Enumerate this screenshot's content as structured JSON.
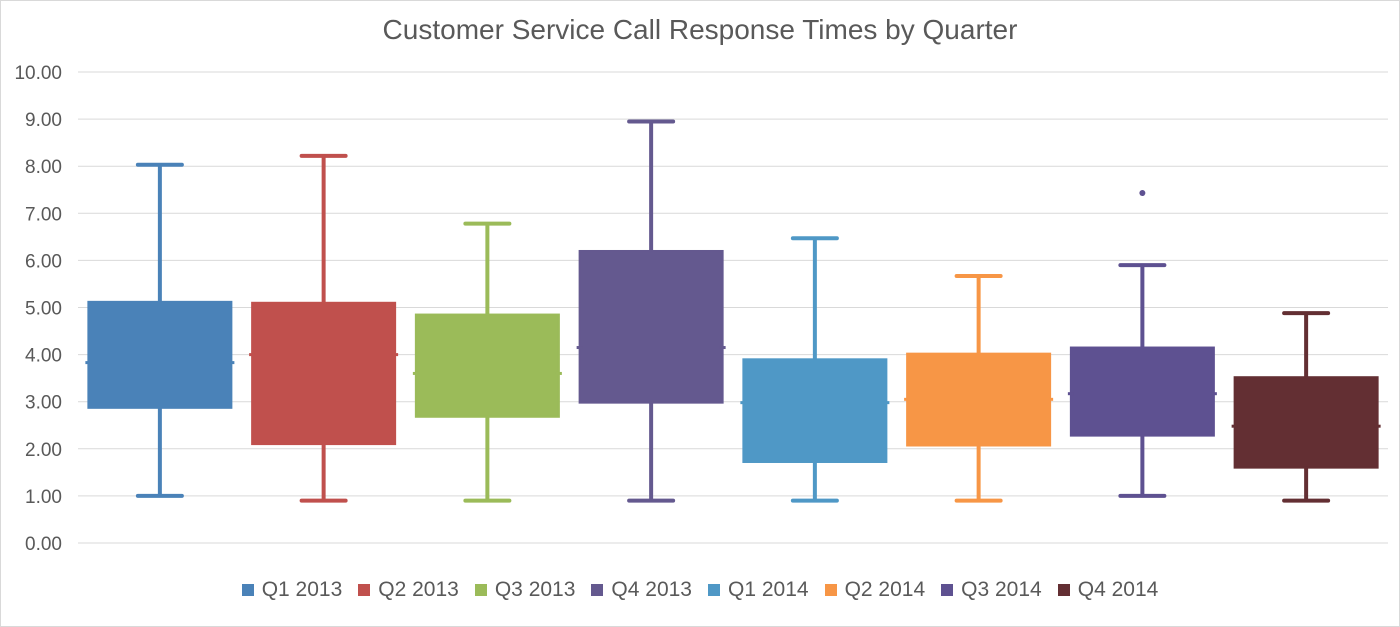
{
  "chart_data": {
    "type": "boxplot",
    "title": "Customer Service Call Response Times by Quarter",
    "xlabel": "",
    "ylabel": "",
    "ylim": [
      0,
      10
    ],
    "y_ticks": [
      "0.00",
      "1.00",
      "2.00",
      "3.00",
      "4.00",
      "5.00",
      "6.00",
      "7.00",
      "8.00",
      "9.00",
      "10.00"
    ],
    "grid": true,
    "legend_position": "bottom",
    "series": [
      {
        "name": "Q1 2013",
        "color": "#4a82b8",
        "min": 1.0,
        "q1": 2.87,
        "median": 3.83,
        "q3": 5.12,
        "max": 8.03,
        "outliers": []
      },
      {
        "name": "Q2 2013",
        "color": "#c0504d",
        "min": 0.9,
        "q1": 2.1,
        "median": 4.0,
        "q3": 5.1,
        "max": 8.22,
        "outliers": []
      },
      {
        "name": "Q3 2013",
        "color": "#9bbb59",
        "min": 0.9,
        "q1": 2.68,
        "median": 3.6,
        "q3": 4.85,
        "max": 6.78,
        "outliers": []
      },
      {
        "name": "Q4 2013",
        "color": "#64598f",
        "min": 0.9,
        "q1": 2.98,
        "median": 4.15,
        "q3": 6.2,
        "max": 8.95,
        "outliers": []
      },
      {
        "name": "Q1 2014",
        "color": "#4f98c6",
        "min": 0.9,
        "q1": 1.72,
        "median": 2.98,
        "q3": 3.9,
        "max": 6.47,
        "outliers": []
      },
      {
        "name": "Q2 2014",
        "color": "#f79646",
        "min": 0.9,
        "q1": 2.07,
        "median": 3.05,
        "q3": 4.02,
        "max": 5.67,
        "outliers": []
      },
      {
        "name": "Q3 2014",
        "color": "#5e5191",
        "min": 1.0,
        "q1": 2.28,
        "median": 3.17,
        "q3": 4.15,
        "max": 5.9,
        "outliers": [
          7.43
        ]
      },
      {
        "name": "Q4 2014",
        "color": "#632f33",
        "min": 0.9,
        "q1": 1.6,
        "median": 2.48,
        "q3": 3.52,
        "max": 4.88,
        "outliers": []
      }
    ]
  }
}
